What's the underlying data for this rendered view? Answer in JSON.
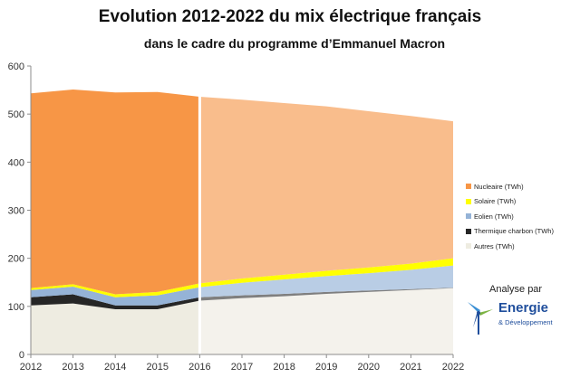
{
  "chart_data": {
    "type": "area",
    "title": "Evolution 2012-2022 du mix électrique français",
    "subtitle": "dans le cadre du programme d’Emmanuel Macron",
    "stacked": true,
    "x": [
      2012,
      2013,
      2014,
      2015,
      2016,
      2017,
      2018,
      2019,
      2020,
      2021,
      2022
    ],
    "xlim": [
      2012,
      2022
    ],
    "ylim": [
      0,
      600
    ],
    "yticks": [
      0,
      100,
      200,
      300,
      400,
      500,
      600
    ],
    "grid": false,
    "legend_position": "right",
    "divider_year": 2016,
    "projection_start": 2016,
    "series": [
      {
        "name": "Nucleaire (TWh)",
        "color": "#f79646",
        "projection_color": "#f9bd8c",
        "values": [
          405,
          405,
          420,
          416,
          388,
          372,
          357,
          342,
          325,
          307,
          285
        ]
      },
      {
        "name": "Solaire (TWh)",
        "color": "#ffff00",
        "projection_color": "#ffff00",
        "values": [
          4,
          5,
          6,
          7,
          8,
          9,
          10,
          11,
          12,
          13,
          15
        ]
      },
      {
        "name": "Eolien (TWh)",
        "color": "#95b3d7",
        "projection_color": "#b9cde5",
        "values": [
          15,
          16,
          17,
          21,
          21,
          26,
          30,
          33,
          36,
          40,
          46
        ]
      },
      {
        "name": "Thermique charbon (TWh)",
        "color": "#262626",
        "projection_color": "#7f7f7f",
        "values": [
          17,
          19,
          8,
          8,
          7,
          6,
          5,
          4,
          3,
          2,
          1
        ]
      },
      {
        "name": "Autres (TWh)",
        "color": "#eeece1",
        "projection_color": "#f4f2ec",
        "values": [
          102,
          106,
          94,
          94,
          112,
          117,
          121,
          126,
          130,
          134,
          138
        ]
      }
    ]
  },
  "legend": [
    {
      "label": "Nucleaire (TWh)",
      "color": "#f79646"
    },
    {
      "label": "Solaire (TWh)",
      "color": "#ffff00"
    },
    {
      "label": "Eolien (TWh)",
      "color": "#95b3d7"
    },
    {
      "label": "Thermique charbon (TWh)",
      "color": "#262626"
    },
    {
      "label": "Autres (TWh)",
      "color": "#eeece1"
    }
  ],
  "branding": {
    "caption": "Analyse par",
    "name": "Energie",
    "subname": "& Développement",
    "color": "#1f4e9c"
  }
}
